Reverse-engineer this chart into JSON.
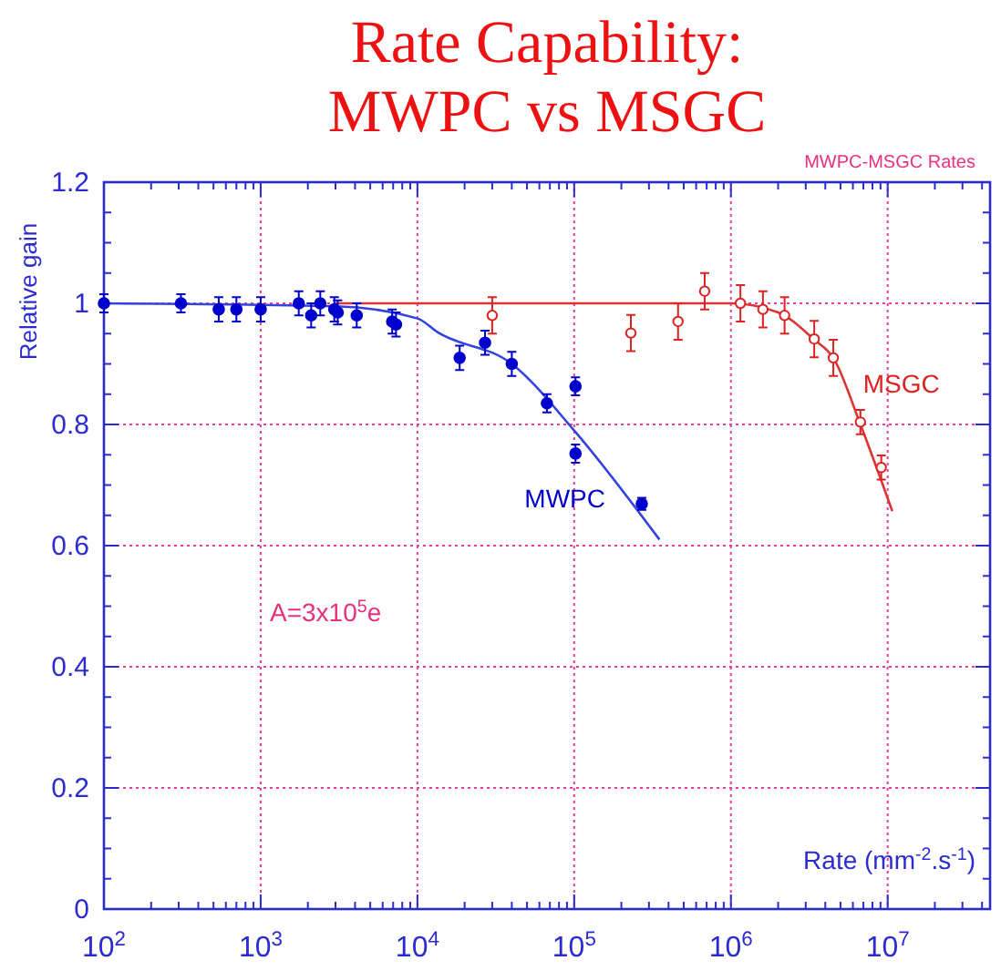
{
  "chart_data": {
    "type": "scatter",
    "title": "Rate Capability:\nMWPC vs MSGC",
    "xlabel": "Rate  (mm$^{-2}$.s$^{-1}$)",
    "ylabel": "Relative gain",
    "annotations": [
      "MWPC-MSGC Rates",
      "A=3x10$^{5}$e"
    ],
    "log": "x",
    "grid": true,
    "xlim": [
      100,
      45000000
    ],
    "ylim": [
      0,
      1.2
    ],
    "xticks": [
      {
        "value": 100,
        "label": "10$^{2}$"
      },
      {
        "value": 1000,
        "label": "10$^{3}$"
      },
      {
        "value": 10000,
        "label": "10$^{4}$"
      },
      {
        "value": 100000,
        "label": "10$^{5}$"
      },
      {
        "value": 1000000,
        "label": "10$^{6}$"
      },
      {
        "value": 10000000,
        "label": "10$^{7}$"
      }
    ],
    "yticks": [
      0,
      0.2,
      0.4,
      0.6,
      0.8,
      1,
      1.2
    ],
    "series": [
      {
        "name": "MWPC",
        "marker": "circle",
        "color": "#0000cc",
        "x": [
          100,
          310,
          540,
          700,
          1000,
          1750,
          2100,
          2400,
          2950,
          3100,
          4100,
          6900,
          7300,
          18600,
          27000,
          40000,
          67000,
          102000,
          102000,
          270000
        ],
        "values": [
          1,
          1,
          0.99,
          0.99,
          0.99,
          1,
          0.98,
          1,
          0.99,
          0.985,
          0.98,
          0.97,
          0.965,
          0.91,
          0.935,
          0.9,
          0.835,
          0.863,
          0.752,
          0.669
        ],
        "errors": [
          0.015,
          0.015,
          0.02,
          0.02,
          0.02,
          0.02,
          0.02,
          0.02,
          0.02,
          0.02,
          0.02,
          0.02,
          0.02,
          0.02,
          0.02,
          0.02,
          0.015,
          0.015,
          0.015,
          0.01
        ]
      },
      {
        "name": "MSGC",
        "marker": "circle",
        "color": "#dd2222",
        "x": [
          30000,
          230000,
          460000,
          680000,
          1150000,
          1600000,
          2200000,
          3400000,
          4500000,
          6700000,
          9100000
        ],
        "values": [
          0.98,
          0.951,
          0.97,
          1.02,
          1,
          0.99,
          0.98,
          0.941,
          0.91,
          0.804,
          0.729
        ],
        "errors": [
          0.03,
          0.03,
          0.03,
          0.03,
          0.03,
          0.03,
          0.03,
          0.03,
          0.03,
          0.02,
          0.02
        ]
      },
      {
        "type": "line",
        "marker": "none",
        "color": "#3344dd",
        "x": [
          100,
          3000,
          10000,
          13500,
          40000,
          100000,
          350000
        ],
        "values": [
          1,
          0.995,
          0.975,
          0.952,
          0.9,
          0.79,
          0.61
        ]
      },
      {
        "type": "line",
        "marker": "none",
        "color": "#dd3333",
        "x": [
          3000,
          1000000,
          2000000,
          3400000,
          4500000,
          6700000,
          10700000
        ],
        "values": [
          1,
          1,
          0.985,
          0.94,
          0.91,
          0.8,
          0.657
        ]
      }
    ]
  }
}
